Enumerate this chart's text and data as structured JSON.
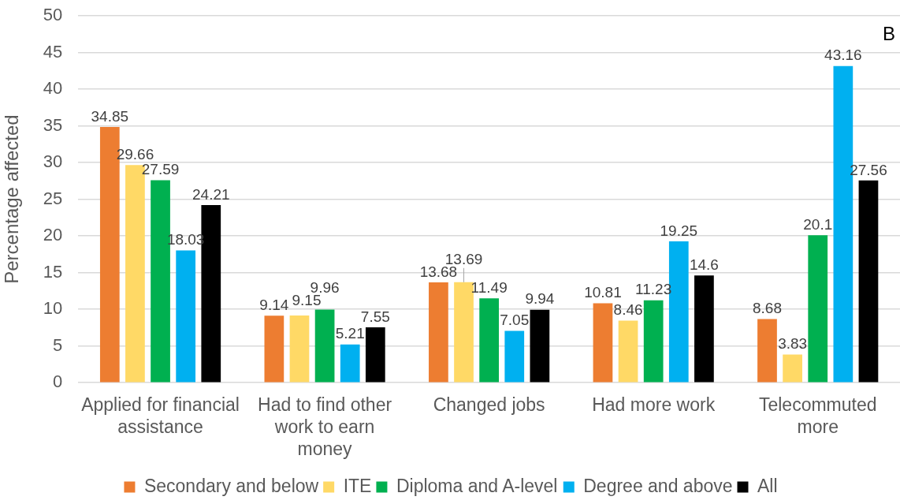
{
  "chart_data": {
    "type": "bar",
    "categories": [
      "Applied for financial assistance",
      "Had to find other work to earn money",
      "Changed jobs",
      "Had more work",
      "Telecommuted more"
    ],
    "series": [
      {
        "name": "Secondary and below",
        "color": "#ed7d31",
        "values": [
          34.85,
          9.14,
          13.68,
          10.81,
          8.68
        ]
      },
      {
        "name": "ITE",
        "color": "#ffd966",
        "values": [
          29.66,
          9.15,
          13.69,
          8.46,
          3.83
        ]
      },
      {
        "name": "Diploma and A-level",
        "color": "#00b050",
        "values": [
          27.59,
          9.96,
          11.49,
          11.23,
          20.1
        ]
      },
      {
        "name": "Degree and above",
        "color": "#00b0f0",
        "values": [
          18.03,
          5.21,
          7.05,
          19.25,
          43.16
        ]
      },
      {
        "name": "All",
        "color": "#000000",
        "values": [
          24.21,
          7.55,
          9.94,
          14.6,
          27.56
        ]
      }
    ],
    "ylabel": "Percentage affected",
    "ylim": [
      0,
      50
    ],
    "yticks": [
      0,
      5,
      10,
      15,
      20,
      25,
      30,
      35,
      40,
      45,
      50
    ],
    "grid": "y",
    "legend": "bottom",
    "data_labels": true,
    "annotations": [
      "B"
    ]
  }
}
